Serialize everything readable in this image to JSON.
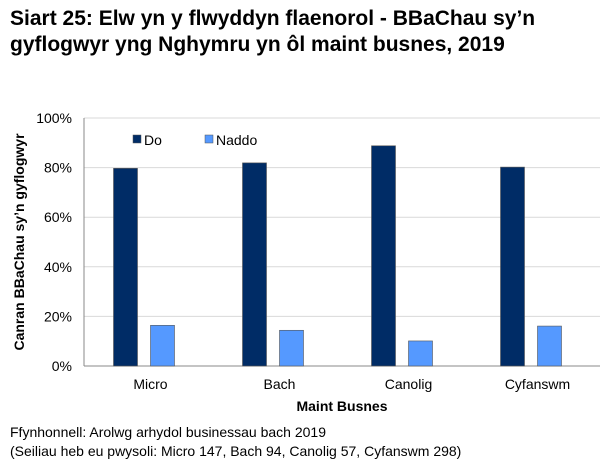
{
  "chart_data": {
    "type": "bar",
    "title": "Siart 25: Elw yn y flwyddyn flaenorol - BBaChau sy’n gyflogwyr yng Nghymru yn ôl maint busnes, 2019",
    "xlabel": "Maint Busnes",
    "ylabel": "Canran BBaChau sy’n gyflogwyr",
    "categories": [
      "Micro",
      "Bach",
      "Canolig",
      "Cyfanswm"
    ],
    "series": [
      {
        "name": "Do",
        "values": [
          79.7,
          81.9,
          88.8,
          80.2
        ],
        "color": "#002C66"
      },
      {
        "name": "Naddo",
        "values": [
          16.4,
          14.4,
          10.1,
          16.1
        ],
        "color": "#5599FF"
      }
    ],
    "ylim": [
      0,
      100
    ],
    "yticks": [
      "0%",
      "20%",
      "40%",
      "60%",
      "80%",
      "100%"
    ],
    "grid": true,
    "legend": "top-left"
  },
  "source": {
    "line1": "Ffynhonnell: Arolwg arhydol businessau bach 2019",
    "line2": "(Seiliau heb eu pwysoli: Micro 147, Bach 94, Canolig 57, Cyfanswm 298)"
  }
}
